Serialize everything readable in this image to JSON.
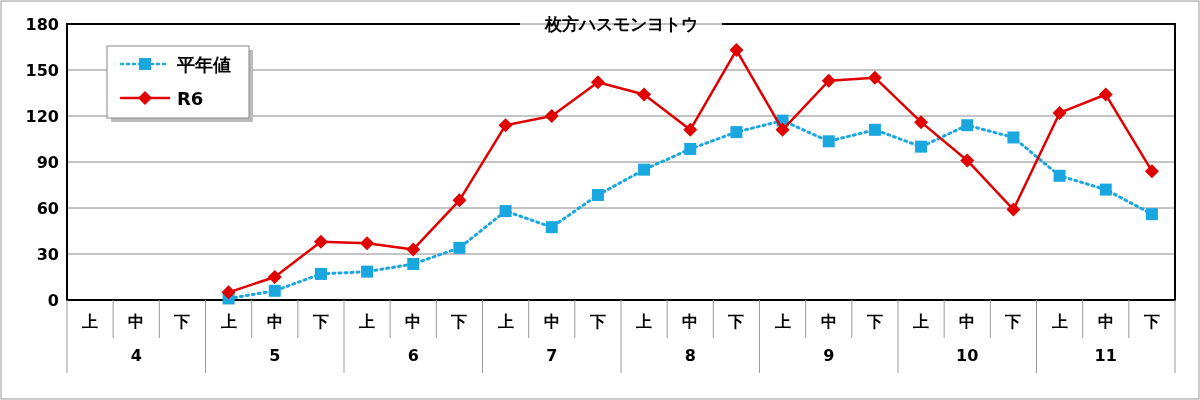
{
  "chart_data": {
    "type": "line",
    "title": "枚方ハスモンヨトウ",
    "categories": [
      "上",
      "中",
      "下",
      "上",
      "中",
      "下",
      "上",
      "中",
      "下",
      "上",
      "中",
      "下",
      "上",
      "中",
      "下",
      "上",
      "中",
      "下",
      "上",
      "中",
      "下",
      "上",
      "中",
      "下"
    ],
    "annotations": [
      "4",
      "5",
      "6",
      "7",
      "8",
      "9",
      "10",
      "11"
    ],
    "series": [
      {
        "name": "平年値",
        "color": "#1aa7e0",
        "marker": "square",
        "line_style": "dotted",
        "values": [
          null,
          null,
          null,
          1,
          6,
          17,
          18.5,
          23.5,
          34,
          58,
          47.5,
          68.5,
          85,
          98.5,
          109.5,
          117,
          103.5,
          111,
          100,
          114,
          106,
          81,
          72,
          56
        ]
      },
      {
        "name": "R6",
        "color": "#e00000",
        "marker": "diamond",
        "line_style": "solid",
        "values": [
          null,
          null,
          null,
          5,
          15,
          38,
          37,
          33,
          65,
          114,
          120,
          142,
          134,
          111,
          163,
          111,
          143,
          145,
          116,
          91,
          59,
          122,
          134,
          84
        ]
      }
    ],
    "ylim": [
      0,
      180
    ],
    "yticks": [
      0,
      30,
      60,
      90,
      120,
      150,
      180
    ],
    "grid": "y",
    "legend": "top left"
  }
}
